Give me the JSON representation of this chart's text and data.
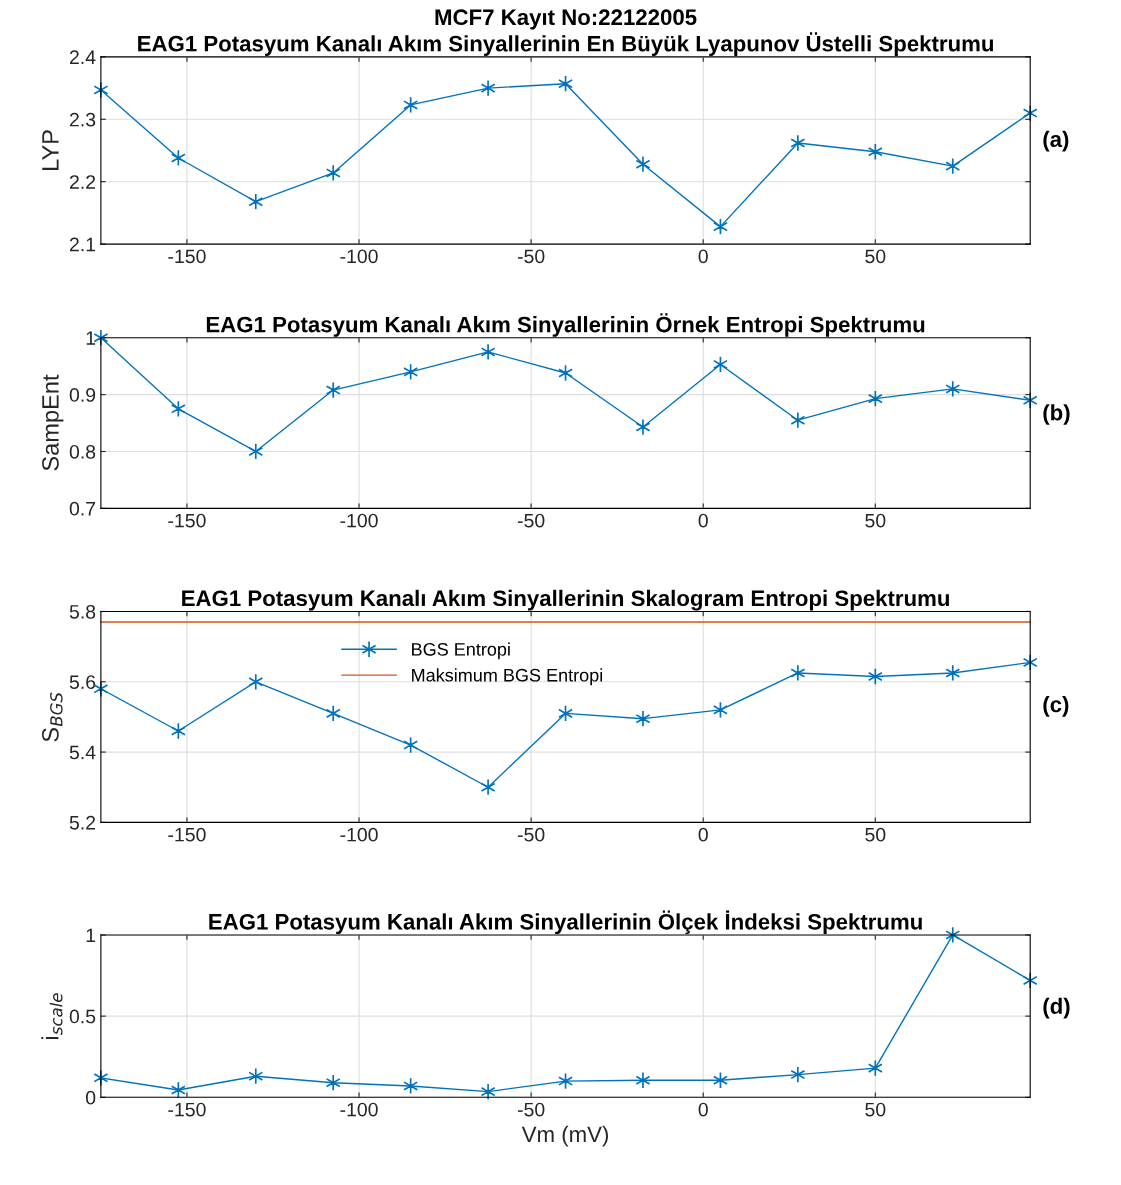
{
  "chart_data": [
    {
      "type": "line",
      "title": "MCF7 Kayıt No:22122005\nEAG1 Potasyum Kanalı Akım Sinyallerinin En Büyük Lyapunov Üstelli Spektrumu",
      "ylabel": "LYP",
      "annotations": [
        "(a)"
      ],
      "x": [
        -175,
        -152.5,
        -130,
        -107.5,
        -85,
        -62.5,
        -40,
        -17.5,
        5,
        27.5,
        50,
        72.5,
        95
      ],
      "series": [
        {
          "color": "#0072bd",
          "values": [
            2.347,
            2.238,
            2.168,
            2.214,
            2.323,
            2.35,
            2.357,
            2.228,
            2.128,
            2.262,
            2.248,
            2.225,
            2.31
          ]
        }
      ],
      "xlim": [
        -175,
        95
      ],
      "xticks": [
        -150,
        -100,
        -50,
        0,
        50
      ],
      "ylim": [
        2.1,
        2.4
      ],
      "yticks": [
        2.1,
        2.2,
        2.3,
        2.4
      ],
      "grid": true,
      "marker": "cross",
      "line_style": "solid"
    },
    {
      "type": "line",
      "title": "EAG1 Potasyum Kanalı Akım Sinyallerinin Örnek Entropi Spektrumu",
      "ylabel": "SampEnt",
      "annotations": [
        "(b)"
      ],
      "x": [
        -175,
        -152.5,
        -130,
        -107.5,
        -85,
        -62.5,
        -40,
        -17.5,
        5,
        27.5,
        50,
        72.5,
        95
      ],
      "series": [
        {
          "color": "#0072bd",
          "values": [
            1.0,
            0.875,
            0.8,
            0.908,
            0.94,
            0.975,
            0.938,
            0.843,
            0.953,
            0.855,
            0.893,
            0.91,
            0.89
          ]
        }
      ],
      "xlim": [
        -175,
        95
      ],
      "xticks": [
        -150,
        -100,
        -50,
        0,
        50
      ],
      "ylim": [
        0.7,
        1.0
      ],
      "yticks": [
        0.7,
        0.8,
        0.9,
        {
          "value": 1.0,
          "label": "1"
        }
      ],
      "grid": true,
      "marker": "cross",
      "line_style": "solid"
    },
    {
      "type": "line",
      "title": "EAG1 Potasyum Kanalı Akım Sinyallerinin Skalogram Entropi Spektrumu",
      "ylabel": "S$_{BGS}$",
      "annotations": [
        "(c)"
      ],
      "x": [
        -175,
        -152.5,
        -130,
        -107.5,
        -85,
        -62.5,
        -40,
        -17.5,
        5,
        27.5,
        50,
        72.5,
        95
      ],
      "series": [
        {
          "name": "BGS Entropi",
          "color": "#0072bd",
          "values": [
            5.58,
            5.46,
            5.6,
            5.51,
            5.42,
            5.3,
            5.51,
            5.495,
            5.52,
            5.625,
            5.615,
            5.625,
            5.655
          ]
        },
        {
          "name": "Maksimum BGS Entropi",
          "color": "#d95319",
          "x": [
            -175,
            95
          ],
          "values": [
            5.77,
            5.77
          ],
          "marker": "none"
        }
      ],
      "xlim": [
        -175,
        95
      ],
      "xticks": [
        -150,
        -100,
        -50,
        0,
        50
      ],
      "ylim": [
        5.2,
        5.8
      ],
      "yticks": [
        5.2,
        5.4,
        5.6,
        5.8
      ],
      "grid": true,
      "marker": "cross",
      "line_style": "solid",
      "legend": "top"
    },
    {
      "type": "line",
      "title": "EAG1 Potasyum Kanalı Akım Sinyallerinin Ölçek İndeksi Spektrumu",
      "xlabel": "Vm (mV)",
      "ylabel": "i$_{scale}$",
      "annotations": [
        "(d)"
      ],
      "x": [
        -175,
        -152.5,
        -130,
        -107.5,
        -85,
        -62.5,
        -40,
        -17.5,
        5,
        27.5,
        50,
        72.5,
        95
      ],
      "series": [
        {
          "color": "#0072bd",
          "values": [
            0.12,
            0.045,
            0.13,
            0.09,
            0.07,
            0.035,
            0.1,
            0.105,
            0.105,
            0.14,
            0.18,
            1.0,
            0.72
          ]
        }
      ],
      "xlim": [
        -175,
        95
      ],
      "xticks": [
        -150,
        -100,
        -50,
        0,
        50
      ],
      "ylim": [
        0,
        1
      ],
      "yticks": [
        0,
        0.5,
        1
      ],
      "grid": true,
      "marker": "cross",
      "line_style": "solid"
    }
  ]
}
